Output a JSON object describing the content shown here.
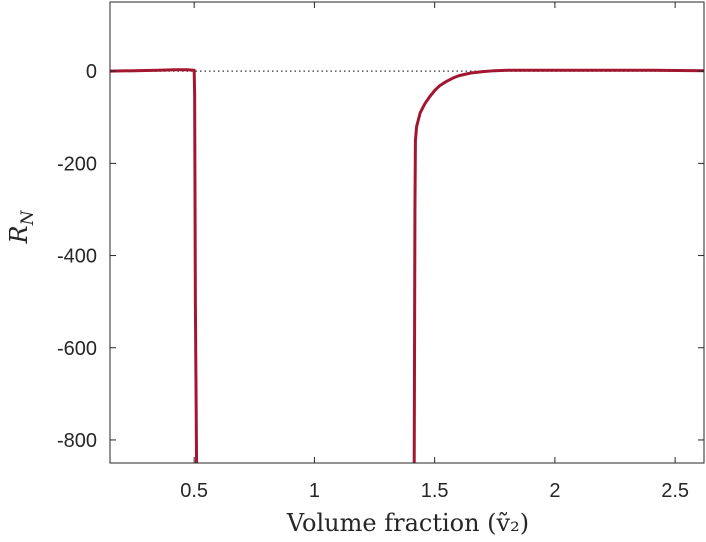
{
  "chart_data": {
    "type": "line",
    "title": "",
    "xlabel": "Volume fraction (ṽ₂)",
    "ylabel": "R_N",
    "ylabel_main": "R",
    "ylabel_sub": "N",
    "xlim": [
      0.15,
      2.62
    ],
    "ylim": [
      -850,
      150
    ],
    "xticks": [
      0.5,
      1,
      1.5,
      2,
      2.5
    ],
    "xtick_labels": [
      "0.5",
      "1",
      "1.5",
      "2",
      "2.5"
    ],
    "yticks": [
      0,
      -200,
      -400,
      -600,
      -800
    ],
    "ytick_labels": [
      "0",
      "-200",
      "-400",
      "-600",
      "-800"
    ],
    "reference_line": {
      "y": 0,
      "style": "dotted"
    },
    "grid": false,
    "line_color": "#a3162f",
    "series": [
      {
        "name": "",
        "segments": [
          {
            "x": [
              0.15,
              0.25,
              0.35,
              0.42,
              0.47,
              0.5,
              0.502,
              0.505,
              0.51
            ],
            "y": [
              0,
              1,
              2,
              3,
              3,
              2,
              -50,
              -500,
              -850
            ]
          },
          {
            "x": [
              1.415,
              1.418,
              1.42,
              1.425,
              1.44,
              1.46,
              1.48,
              1.5,
              1.52,
              1.55,
              1.58,
              1.6,
              1.65,
              1.7,
              1.75,
              1.8,
              1.9,
              2.0,
              2.2,
              2.4,
              2.62
            ],
            "y": [
              -850,
              -300,
              -150,
              -120,
              -90,
              -70,
              -55,
              -42,
              -32,
              -22,
              -14,
              -10,
              -4,
              -1,
              1,
              2,
              2,
              2,
              2,
              2,
              1
            ]
          }
        ]
      }
    ]
  }
}
